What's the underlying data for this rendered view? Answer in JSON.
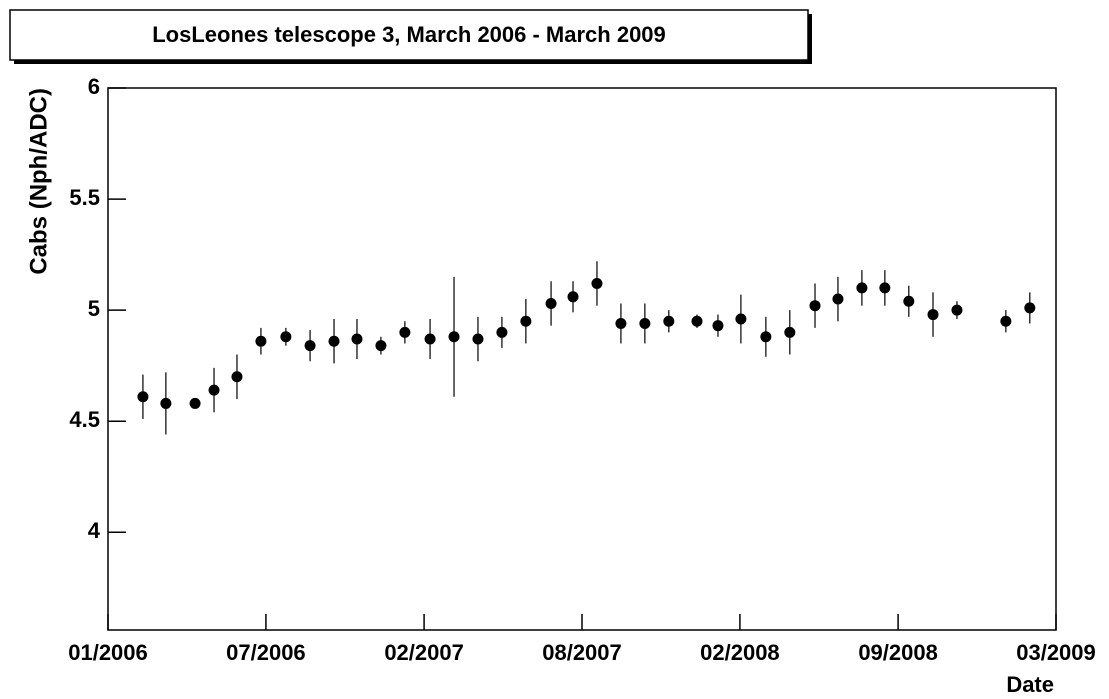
{
  "chart_data": {
    "type": "scatter",
    "title": "LosLeones telescope 3,  March 2006 - March 2009",
    "x_label": "Date",
    "y_label": "Cabs  (Nph/ADC)",
    "color": "#000000",
    "x": [
      1.4,
      2.32,
      3.49,
      4.25,
      5.17,
      6.13,
      7.13,
      8.1,
      9.06,
      9.98,
      10.94,
      11.9,
      12.91,
      13.87,
      14.83,
      15.79,
      16.75,
      17.76,
      18.64,
      19.6,
      20.56,
      21.52,
      22.48,
      23.61,
      24.45,
      25.37,
      26.37,
      27.33,
      28.34,
      29.26,
      30.22,
      31.14,
      32.1,
      33.07,
      34.03,
      35.99,
      36.95
    ],
    "values": [
      4.61,
      4.58,
      4.58,
      4.64,
      4.7,
      4.86,
      4.88,
      4.84,
      4.86,
      4.87,
      4.84,
      4.9,
      4.87,
      4.88,
      4.87,
      4.9,
      4.95,
      5.03,
      5.06,
      5.12,
      4.94,
      4.94,
      4.95,
      4.95,
      4.93,
      4.96,
      4.88,
      4.9,
      5.02,
      5.05,
      5.1,
      5.1,
      5.04,
      4.98,
      5.0,
      4.95,
      5.01
    ],
    "errors": [
      0.1,
      0.14,
      0.02,
      0.1,
      0.1,
      0.06,
      0.04,
      0.07,
      0.1,
      0.09,
      0.04,
      0.05,
      0.09,
      0.27,
      0.1,
      0.07,
      0.1,
      0.1,
      0.07,
      0.1,
      0.09,
      0.09,
      0.05,
      0.03,
      0.05,
      0.11,
      0.09,
      0.1,
      0.1,
      0.1,
      0.08,
      0.08,
      0.07,
      0.1,
      0.04,
      0.05,
      0.07
    ],
    "xlim": [
      0,
      38
    ],
    "xticks": [
      {
        "value": 0,
        "label": "01/2006"
      },
      {
        "value": 6.33,
        "label": "07/2006"
      },
      {
        "value": 12.67,
        "label": "02/2007"
      },
      {
        "value": 19,
        "label": "08/2007"
      },
      {
        "value": 25.33,
        "label": "02/2008"
      },
      {
        "value": 31.67,
        "label": "09/2008"
      },
      {
        "value": 38,
        "label": "03/2009"
      }
    ],
    "ylim": [
      3.56,
      6
    ],
    "yticks": [
      4,
      4.5,
      5,
      5.5,
      6
    ]
  }
}
